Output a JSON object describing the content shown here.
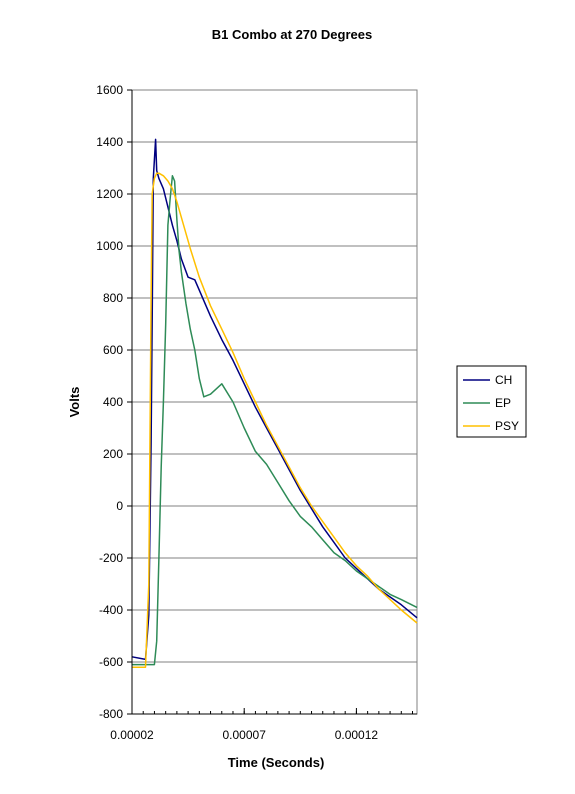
{
  "chart_data": {
    "type": "line",
    "title": "B1 Combo at 270 Degrees",
    "xlabel": "Time (Seconds)",
    "ylabel": "Volts",
    "xlim": [
      2e-05,
      0.000147
    ],
    "ylim": [
      -800,
      1600
    ],
    "x_ticks": [
      2e-05,
      7e-05,
      0.00012
    ],
    "x_tick_labels": [
      "0.00002",
      "0.00007",
      "0.00012"
    ],
    "y_ticks": [
      -800,
      -600,
      -400,
      -200,
      0,
      200,
      400,
      600,
      800,
      1000,
      1200,
      1400,
      1600
    ],
    "y_tick_labels": [
      "-800",
      "-600",
      "-400",
      "-200",
      "0",
      "200",
      "400",
      "600",
      "800",
      "1000",
      "1200",
      "1400",
      "1600"
    ],
    "grid": "horizontal",
    "legend_position": "right",
    "series": [
      {
        "name": "CH",
        "color": "#000080",
        "x": [
          2e-05,
          2.6e-05,
          2.75e-05,
          2.85e-05,
          2.9e-05,
          2.95e-05,
          3.05e-05,
          3.1e-05,
          3.2e-05,
          3.4e-05,
          3.6e-05,
          3.8e-05,
          4e-05,
          4.2e-05,
          4.5e-05,
          4.8e-05,
          5e-05,
          5.5e-05,
          6e-05,
          6.5e-05,
          7e-05,
          7.5e-05,
          8e-05,
          8.5e-05,
          9e-05,
          9.5e-05,
          0.0001,
          0.000105,
          0.00011,
          0.000115,
          0.00012,
          0.000125,
          0.00013,
          0.000135,
          0.00014,
          0.000147
        ],
        "y": [
          -580,
          -590,
          -420,
          240,
          720,
          1260,
          1410,
          1290,
          1260,
          1220,
          1150,
          1080,
          1020,
          950,
          880,
          870,
          830,
          730,
          640,
          560,
          470,
          380,
          300,
          220,
          140,
          60,
          -10,
          -80,
          -140,
          -200,
          -240,
          -280,
          -320,
          -350,
          -380,
          -430
        ]
      },
      {
        "name": "EP",
        "color": "#2E8B57",
        "x": [
          2e-05,
          3e-05,
          3.1e-05,
          3.2e-05,
          3.3e-05,
          3.4e-05,
          3.5e-05,
          3.6e-05,
          3.7e-05,
          3.8e-05,
          3.9e-05,
          4e-05,
          4.1e-05,
          4.2e-05,
          4.4e-05,
          4.6e-05,
          4.8e-05,
          5e-05,
          5.2e-05,
          5.5e-05,
          6e-05,
          6.5e-05,
          7e-05,
          7.5e-05,
          8e-05,
          8.5e-05,
          9e-05,
          9.5e-05,
          0.0001,
          0.000105,
          0.00011,
          0.000115,
          0.00012,
          0.000125,
          0.00013,
          0.000135,
          0.00014,
          0.000147
        ],
        "y": [
          -610,
          -610,
          -520,
          -200,
          150,
          400,
          700,
          1080,
          1180,
          1270,
          1250,
          1100,
          980,
          900,
          780,
          680,
          600,
          490,
          420,
          430,
          470,
          400,
          300,
          210,
          160,
          90,
          20,
          -40,
          -80,
          -130,
          -180,
          -210,
          -250,
          -280,
          -310,
          -340,
          -360,
          -390
        ]
      },
      {
        "name": "PSY",
        "color": "#FFC000",
        "x": [
          2e-05,
          2.6e-05,
          2.75e-05,
          2.85e-05,
          2.9e-05,
          3e-05,
          3.1e-05,
          3.2e-05,
          3.4e-05,
          3.6e-05,
          3.8e-05,
          4e-05,
          4.3e-05,
          4.6e-05,
          5e-05,
          5.5e-05,
          6e-05,
          6.5e-05,
          7e-05,
          7.5e-05,
          8e-05,
          8.5e-05,
          9e-05,
          9.5e-05,
          0.0001,
          0.000105,
          0.00011,
          0.000115,
          0.00012,
          0.000125,
          0.00013,
          0.000135,
          0.00014,
          0.000147
        ],
        "y": [
          -620,
          -620,
          -300,
          800,
          1200,
          1260,
          1280,
          1280,
          1270,
          1250,
          1220,
          1170,
          1080,
          990,
          880,
          770,
          680,
          590,
          490,
          400,
          310,
          230,
          150,
          70,
          0,
          -60,
          -120,
          -180,
          -230,
          -270,
          -320,
          -360,
          -400,
          -450
        ]
      }
    ]
  }
}
